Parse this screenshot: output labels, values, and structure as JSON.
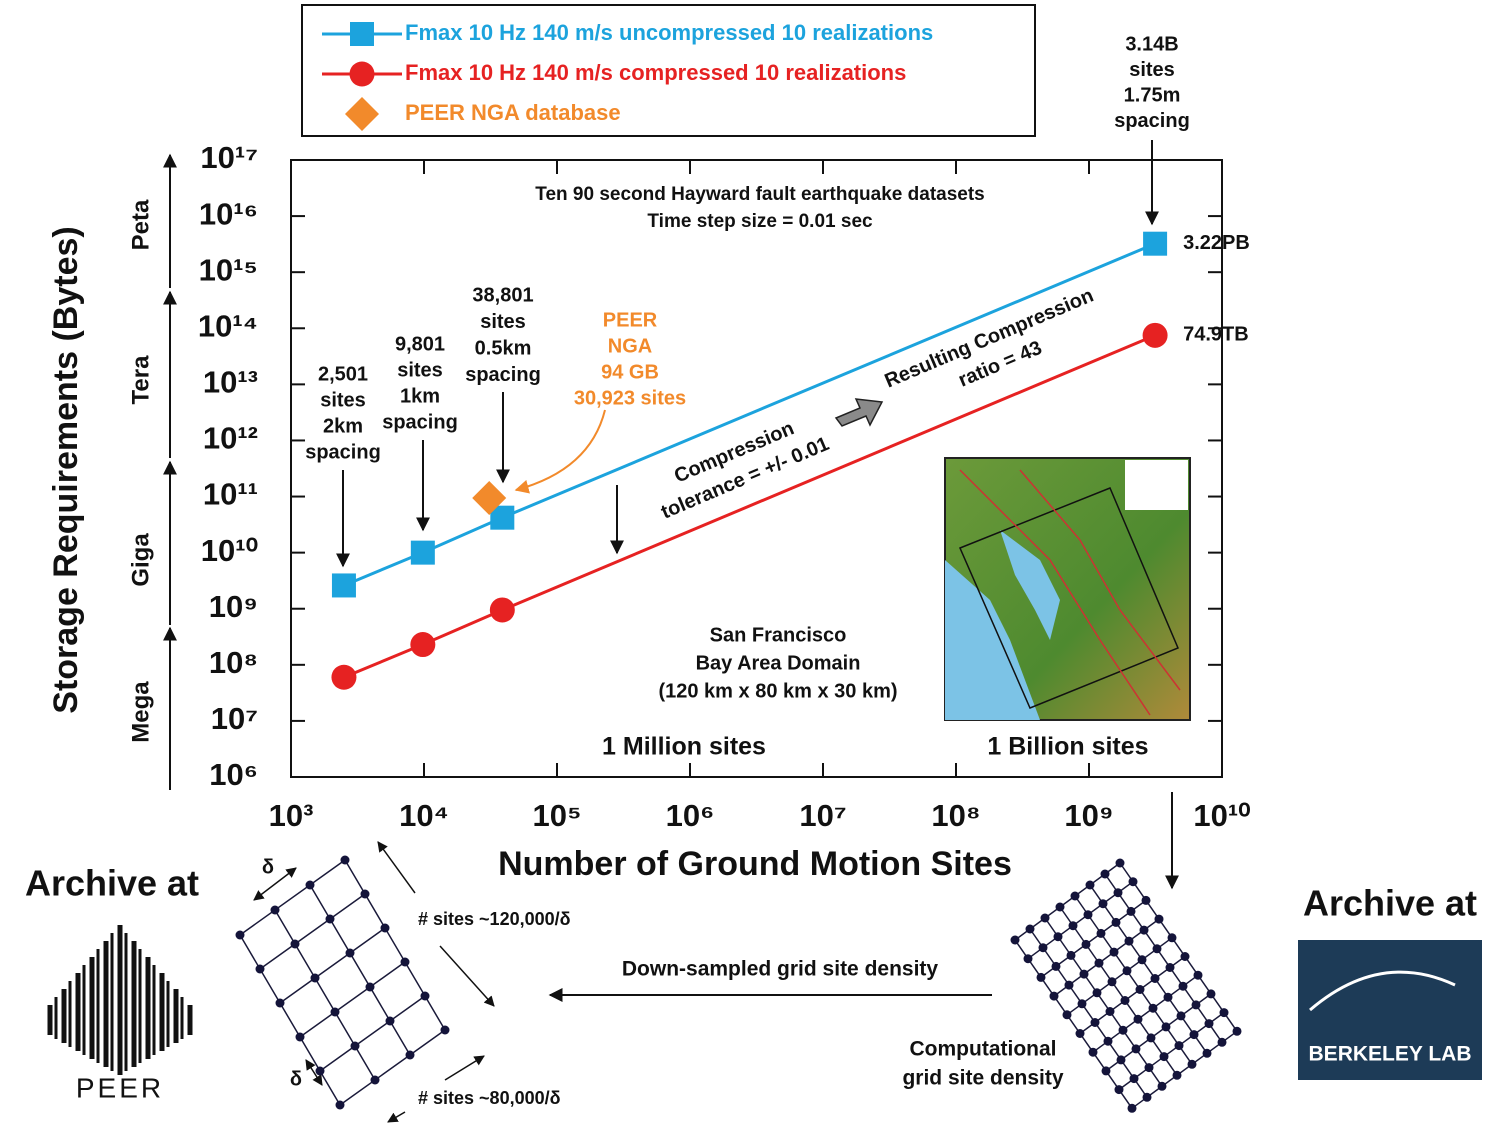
{
  "chart_data": {
    "type": "scatter",
    "title": "Ten 90 second Hayward fault earthquake datasets",
    "subtitle": "Time step size = 0.01 sec",
    "x_label": "Number of Ground Motion Sites",
    "y_label": "Storage Requirements (Bytes)",
    "y_units": [
      "Mega",
      "Giga",
      "Tera",
      "Peta"
    ],
    "xscale": "log",
    "yscale": "log",
    "xlim": [
      1000,
      10000000000
    ],
    "ylim": [
      1000000,
      100000000000000000
    ],
    "xticks": [
      {
        "value": 1000,
        "label": "10³"
      },
      {
        "value": 10000,
        "label": "10⁴"
      },
      {
        "value": 100000,
        "label": "10⁵"
      },
      {
        "value": 1000000,
        "label": "10⁶"
      },
      {
        "value": 10000000,
        "label": "10⁷"
      },
      {
        "value": 100000000,
        "label": "10⁸"
      },
      {
        "value": 1000000000,
        "label": "10⁹"
      },
      {
        "value": 10000000000,
        "label": "10¹⁰"
      }
    ],
    "yticks": [
      {
        "value": 1000000,
        "label": "10⁶"
      },
      {
        "value": 10000000,
        "label": "10⁷"
      },
      {
        "value": 100000000,
        "label": "10⁸"
      },
      {
        "value": 1000000000,
        "label": "10⁹"
      },
      {
        "value": 10000000000,
        "label": "10¹⁰"
      },
      {
        "value": 100000000000,
        "label": "10¹¹"
      },
      {
        "value": 1000000000000,
        "label": "10¹²"
      },
      {
        "value": 10000000000000,
        "label": "10¹³"
      },
      {
        "value": 100000000000000,
        "label": "10¹⁴"
      },
      {
        "value": 1000000000000000,
        "label": "10¹⁵"
      },
      {
        "value": 10000000000000000,
        "label": "10¹⁶"
      },
      {
        "value": 100000000000000000,
        "label": "10¹⁷"
      }
    ],
    "legend": "top",
    "series": [
      {
        "name": "Fmax 10 Hz 140 m/s uncompressed 10 realizations",
        "color": "#1ca3dd",
        "marker": "square",
        "line": true,
        "x": [
          2501,
          9801,
          38801,
          3140000000
        ],
        "values": [
          2600000000,
          10000000000,
          42000000000,
          3220000000000000
        ],
        "value_labels": [
          null,
          null,
          null,
          "3.22PB"
        ]
      },
      {
        "name": "Fmax 10 Hz 140 m/s compressed 10 realizations",
        "color": "#e62222",
        "marker": "circle",
        "line": true,
        "x": [
          2501,
          9801,
          38801,
          3140000000
        ],
        "values": [
          60000000,
          230000000,
          950000000,
          74900000000000
        ],
        "value_labels": [
          null,
          null,
          null,
          "74.9TB"
        ]
      },
      {
        "name": "PEER NGA database",
        "color": "#f28a2b",
        "marker": "diamond",
        "line": false,
        "x": [
          30923
        ],
        "values": [
          94000000000
        ]
      }
    ],
    "annotations": [
      {
        "lines": [
          "3.14B",
          "sites",
          "1.75m",
          "spacing"
        ]
      },
      {
        "lines": [
          "2,501",
          "sites",
          "2km",
          "spacing"
        ]
      },
      {
        "lines": [
          "9,801",
          "sites",
          "1km",
          "spacing"
        ]
      },
      {
        "lines": [
          "38,801",
          "sites",
          "0.5km",
          "spacing"
        ]
      },
      {
        "lines": [
          "PEER",
          "NGA",
          "94 GB",
          "30,923 sites"
        ],
        "color": "#f28a2b"
      },
      {
        "lines": [
          "Compression",
          "tolerance = +/- 0.01"
        ]
      },
      {
        "lines": [
          "Resulting Compression",
          "ratio = 43"
        ]
      },
      {
        "lines": [
          "San Francisco",
          "Bay Area Domain",
          "(120 km x 80 km  x 30 km)"
        ]
      },
      {
        "lines": [
          "1 Million sites"
        ]
      },
      {
        "lines": [
          "1 Billion sites"
        ]
      }
    ]
  },
  "diagram": {
    "archive_left": "Archive at",
    "peer_logo": "PEER",
    "archive_right": "Archive at",
    "lab_logo": "BERKELEY LAB",
    "delta_top": "δ",
    "delta_bottom": "δ",
    "sites_long": "# sites ~120,000/δ",
    "sites_short": "# sites ~80,000/δ",
    "down_sampled": "Down-sampled grid site density",
    "computational": [
      "Computational",
      "grid site density"
    ]
  }
}
